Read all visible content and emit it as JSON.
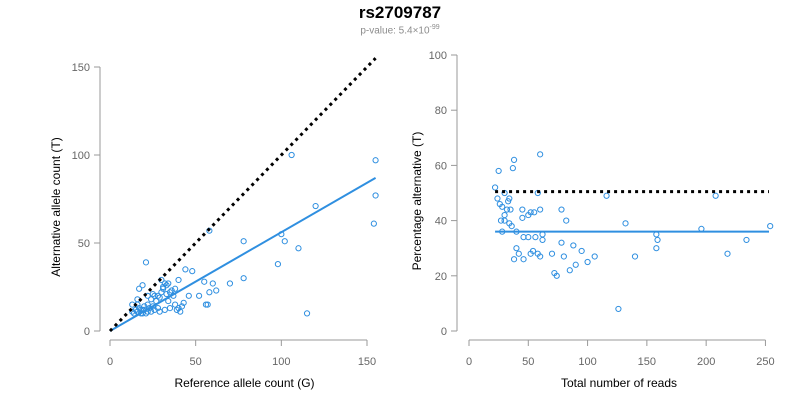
{
  "header": {
    "title": "rs2709787",
    "pvalue_prefix": "p-value: 5.4×10",
    "pvalue_exponent": "-99"
  },
  "colors": {
    "points": "#2f8fe0",
    "fit_line": "#2f8fe0",
    "reference_line": "#000000",
    "axis": "#999999"
  },
  "chart_data": [
    {
      "type": "scatter",
      "title": "",
      "xlabel": "Reference allele count (G)",
      "ylabel": "Alternative allele count (T)",
      "xlim": [
        0,
        157
      ],
      "ylim": [
        0,
        150
      ],
      "xticks": [
        0,
        50,
        100,
        150
      ],
      "yticks": [
        0,
        50,
        100,
        150
      ],
      "grid": false,
      "reference_line": {
        "style": "dotted",
        "from": [
          0,
          0
        ],
        "to": [
          155,
          155
        ]
      },
      "fit_line": {
        "from": [
          0,
          0
        ],
        "to": [
          155,
          87
        ]
      },
      "points": [
        [
          155,
          97
        ],
        [
          155,
          77
        ],
        [
          154,
          61
        ],
        [
          106,
          100
        ],
        [
          58,
          57
        ],
        [
          120,
          71
        ],
        [
          100,
          55
        ],
        [
          102,
          51
        ],
        [
          110,
          47
        ],
        [
          98,
          38
        ],
        [
          115,
          10
        ],
        [
          78,
          51
        ],
        [
          78,
          30
        ],
        [
          70,
          27
        ],
        [
          62,
          23
        ],
        [
          58,
          22
        ],
        [
          60,
          27
        ],
        [
          55,
          28
        ],
        [
          52,
          20
        ],
        [
          57,
          15
        ],
        [
          56,
          15
        ],
        [
          46,
          20
        ],
        [
          48,
          34
        ],
        [
          44,
          35
        ],
        [
          21,
          39
        ],
        [
          19,
          26
        ],
        [
          17,
          24
        ],
        [
          15,
          12
        ],
        [
          16,
          11
        ],
        [
          13,
          15
        ],
        [
          14,
          10
        ],
        [
          13,
          11
        ],
        [
          16,
          15
        ],
        [
          18,
          10
        ],
        [
          17,
          13
        ],
        [
          19,
          12
        ],
        [
          20,
          14
        ],
        [
          22,
          11
        ],
        [
          23,
          13
        ],
        [
          24,
          18
        ],
        [
          25,
          21
        ],
        [
          26,
          20
        ],
        [
          27,
          17
        ],
        [
          28,
          20
        ],
        [
          29,
          19
        ],
        [
          30,
          22
        ],
        [
          31,
          25
        ],
        [
          32,
          27
        ],
        [
          30,
          29
        ],
        [
          33,
          21
        ],
        [
          34,
          17
        ],
        [
          35,
          22
        ],
        [
          36,
          23
        ],
        [
          37,
          20
        ],
        [
          38,
          15
        ],
        [
          39,
          12
        ],
        [
          40,
          13
        ],
        [
          41,
          11
        ],
        [
          42,
          14
        ],
        [
          43,
          16
        ],
        [
          26,
          12
        ],
        [
          28,
          13
        ],
        [
          24,
          11
        ],
        [
          21,
          10
        ],
        [
          20,
          12
        ],
        [
          16,
          18
        ],
        [
          22,
          15
        ],
        [
          18,
          12
        ],
        [
          19,
          10
        ],
        [
          32,
          12
        ],
        [
          35,
          13
        ],
        [
          29,
          11
        ],
        [
          33,
          26
        ],
        [
          31,
          24
        ],
        [
          40,
          29
        ],
        [
          38,
          24
        ],
        [
          34,
          27
        ],
        [
          22,
          20
        ],
        [
          25,
          14
        ]
      ]
    },
    {
      "type": "scatter",
      "title": "",
      "xlabel": "Total number of reads",
      "ylabel": "Percentage alternative (T)",
      "xlim": [
        0,
        253
      ],
      "ylim": [
        0,
        100
      ],
      "xticks": [
        0,
        50,
        100,
        150,
        200,
        250
      ],
      "yticks": [
        0,
        20,
        40,
        60,
        80,
        100
      ],
      "grid": false,
      "reference_line": {
        "style": "dotted",
        "from": [
          22,
          50.5
        ],
        "to": [
          253,
          50.5
        ]
      },
      "fit_line": {
        "from": [
          22,
          36
        ],
        "to": [
          253,
          36
        ]
      },
      "points": [
        [
          60,
          64
        ],
        [
          38,
          62
        ],
        [
          37,
          59
        ],
        [
          25,
          58
        ],
        [
          22,
          52
        ],
        [
          58,
          50
        ],
        [
          30,
          50
        ],
        [
          34,
          48
        ],
        [
          24,
          48
        ],
        [
          26,
          46
        ],
        [
          28,
          45
        ],
        [
          32,
          44
        ],
        [
          35,
          44
        ],
        [
          45,
          44
        ],
        [
          52,
          43
        ],
        [
          55,
          43
        ],
        [
          50,
          42
        ],
        [
          60,
          44
        ],
        [
          78,
          44
        ],
        [
          82,
          40
        ],
        [
          116,
          49
        ],
        [
          208,
          49
        ],
        [
          30,
          40
        ],
        [
          34,
          39
        ],
        [
          36,
          38
        ],
        [
          28,
          36
        ],
        [
          40,
          36
        ],
        [
          46,
          34
        ],
        [
          50,
          34
        ],
        [
          56,
          34
        ],
        [
          62,
          33
        ],
        [
          78,
          32
        ],
        [
          88,
          31
        ],
        [
          132,
          39
        ],
        [
          158,
          35
        ],
        [
          159,
          33
        ],
        [
          196,
          37
        ],
        [
          254,
          38
        ],
        [
          234,
          33
        ],
        [
          40,
          30
        ],
        [
          42,
          28
        ],
        [
          38,
          26
        ],
        [
          46,
          26
        ],
        [
          52,
          28
        ],
        [
          54,
          29
        ],
        [
          58,
          28
        ],
        [
          60,
          27
        ],
        [
          70,
          28
        ],
        [
          72,
          21
        ],
        [
          74,
          20
        ],
        [
          80,
          27
        ],
        [
          85,
          22
        ],
        [
          90,
          24
        ],
        [
          95,
          29
        ],
        [
          100,
          25
        ],
        [
          106,
          27
        ],
        [
          140,
          27
        ],
        [
          158,
          30
        ],
        [
          218,
          28
        ],
        [
          126,
          8
        ],
        [
          30,
          42
        ],
        [
          33,
          47
        ],
        [
          27,
          40
        ],
        [
          45,
          41
        ],
        [
          62,
          35
        ]
      ]
    }
  ]
}
